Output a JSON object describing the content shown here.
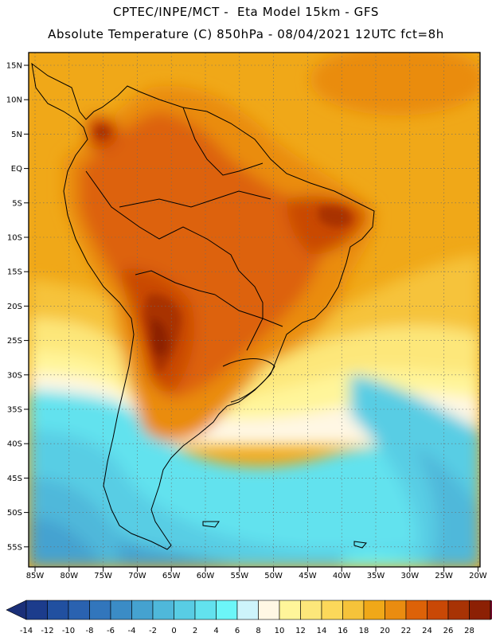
{
  "header": {
    "line1": "CPTEC/INPE/MCT -  Eta Model 15km - GFS",
    "line2": "Absolute Temperature (C) 850hPa - 08/04/2021 12UTC fct=8h"
  },
  "map": {
    "lat_labels": [
      "15N",
      "10N",
      "5N",
      "EQ",
      "5S",
      "10S",
      "15S",
      "20S",
      "25S",
      "30S",
      "35S",
      "40S",
      "45S",
      "50S",
      "55S"
    ],
    "lon_labels": [
      "85W",
      "80W",
      "75W",
      "70W",
      "65W",
      "60W",
      "55W",
      "50W",
      "45W",
      "40W",
      "35W",
      "30W",
      "25W",
      "20W"
    ],
    "grid": "dotted"
  },
  "colorbar": {
    "labels": [
      "-14",
      "-12",
      "-10",
      "-8",
      "-6",
      "-4",
      "-2",
      "0",
      "2",
      "4",
      "6",
      "8",
      "10",
      "12",
      "14",
      "16",
      "18",
      "20",
      "22",
      "24",
      "26",
      "28"
    ],
    "colors": [
      "#1c3c8c",
      "#2150a0",
      "#2a62b0",
      "#3276bc",
      "#3b8cc6",
      "#45a2d0",
      "#4fb8da",
      "#58cde4",
      "#62e2ee",
      "#6cf6f8",
      "#cdf4fb",
      "#fff7e4",
      "#fff59a",
      "#fde77a",
      "#fcd85a",
      "#f6c33a",
      "#f0a818",
      "#ea8c10",
      "#dd6208",
      "#c94806",
      "#a83305",
      "#8c2004"
    ],
    "end_left_color": "#1a2f78",
    "end_right_color": "#7a0b2e"
  }
}
